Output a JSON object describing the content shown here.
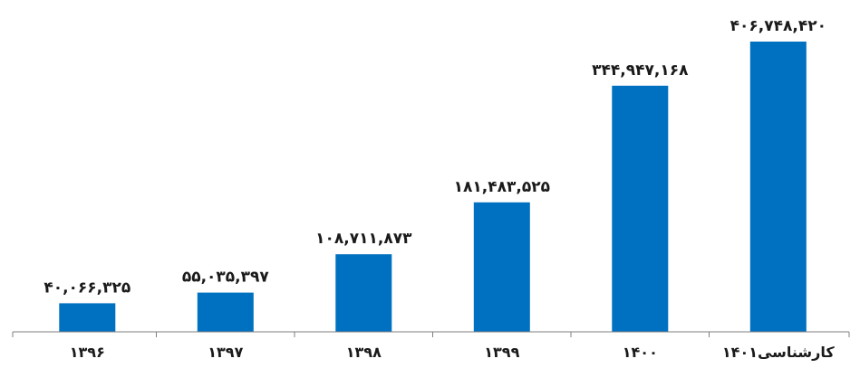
{
  "chart_data": {
    "type": "bar",
    "title": "",
    "xlabel": "",
    "ylabel": "",
    "categories": [
      "۱۳۹۶",
      "۱۳۹۷",
      "۱۳۹۸",
      "۱۳۹۹",
      "۱۴۰۰",
      "کارشناسی۱۴۰۱"
    ],
    "values": [
      40066325,
      55035397,
      108711873,
      181483525,
      344947168,
      406748420
    ],
    "value_labels": [
      "۴۰,۰۶۶,۳۲۵",
      "۵۵,۰۳۵,۳۹۷",
      "۱۰۸,۷۱۱,۸۷۳",
      "۱۸۱,۴۸۳,۵۲۵",
      "۳۴۴,۹۴۷,۱۶۸",
      "۴۰۶,۷۴۸,۴۲۰"
    ],
    "ylim": [
      0,
      420000000
    ],
    "grid": false,
    "legend": "none",
    "bar_color": "#0070c0"
  }
}
